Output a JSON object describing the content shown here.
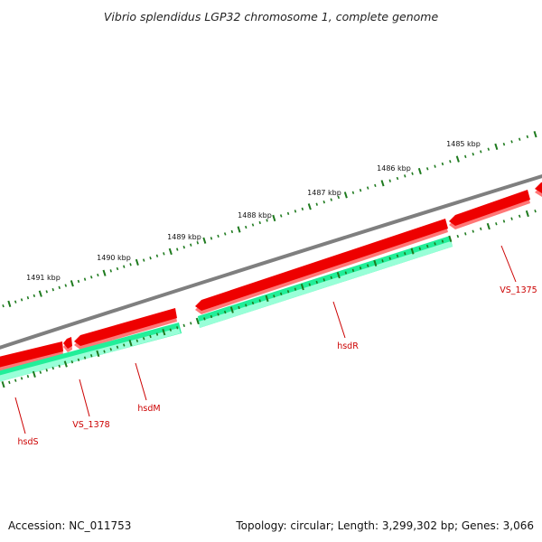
{
  "title": "Vibrio splendidus LGP32 chromosome 1, complete genome",
  "footer": {
    "accession": "Accession: NC_011753",
    "summary": "Topology: circular; Length: 3,299,302 bp; Genes: 3,066"
  },
  "colors": {
    "backbone": "#7f7f7f",
    "forward_gene": "#ee0000",
    "forward_gene_shadow": "#ff7777",
    "reverse_gene": "#22ee99",
    "reverse_gene_shadow": "#99ffd8",
    "tick": "#1e7a1e",
    "gene_label": "#cc0000",
    "leader": "#cc0000"
  },
  "kbp_labels": [
    "1485 kbp",
    "1486 kbp",
    "1487 kbp",
    "1488 kbp",
    "1489 kbp",
    "1490 kbp",
    "1491 kbp"
  ],
  "gene_labels": [
    "VS_1375",
    "hsdR",
    "hsdM",
    "VS_1378",
    "hsdS"
  ]
}
